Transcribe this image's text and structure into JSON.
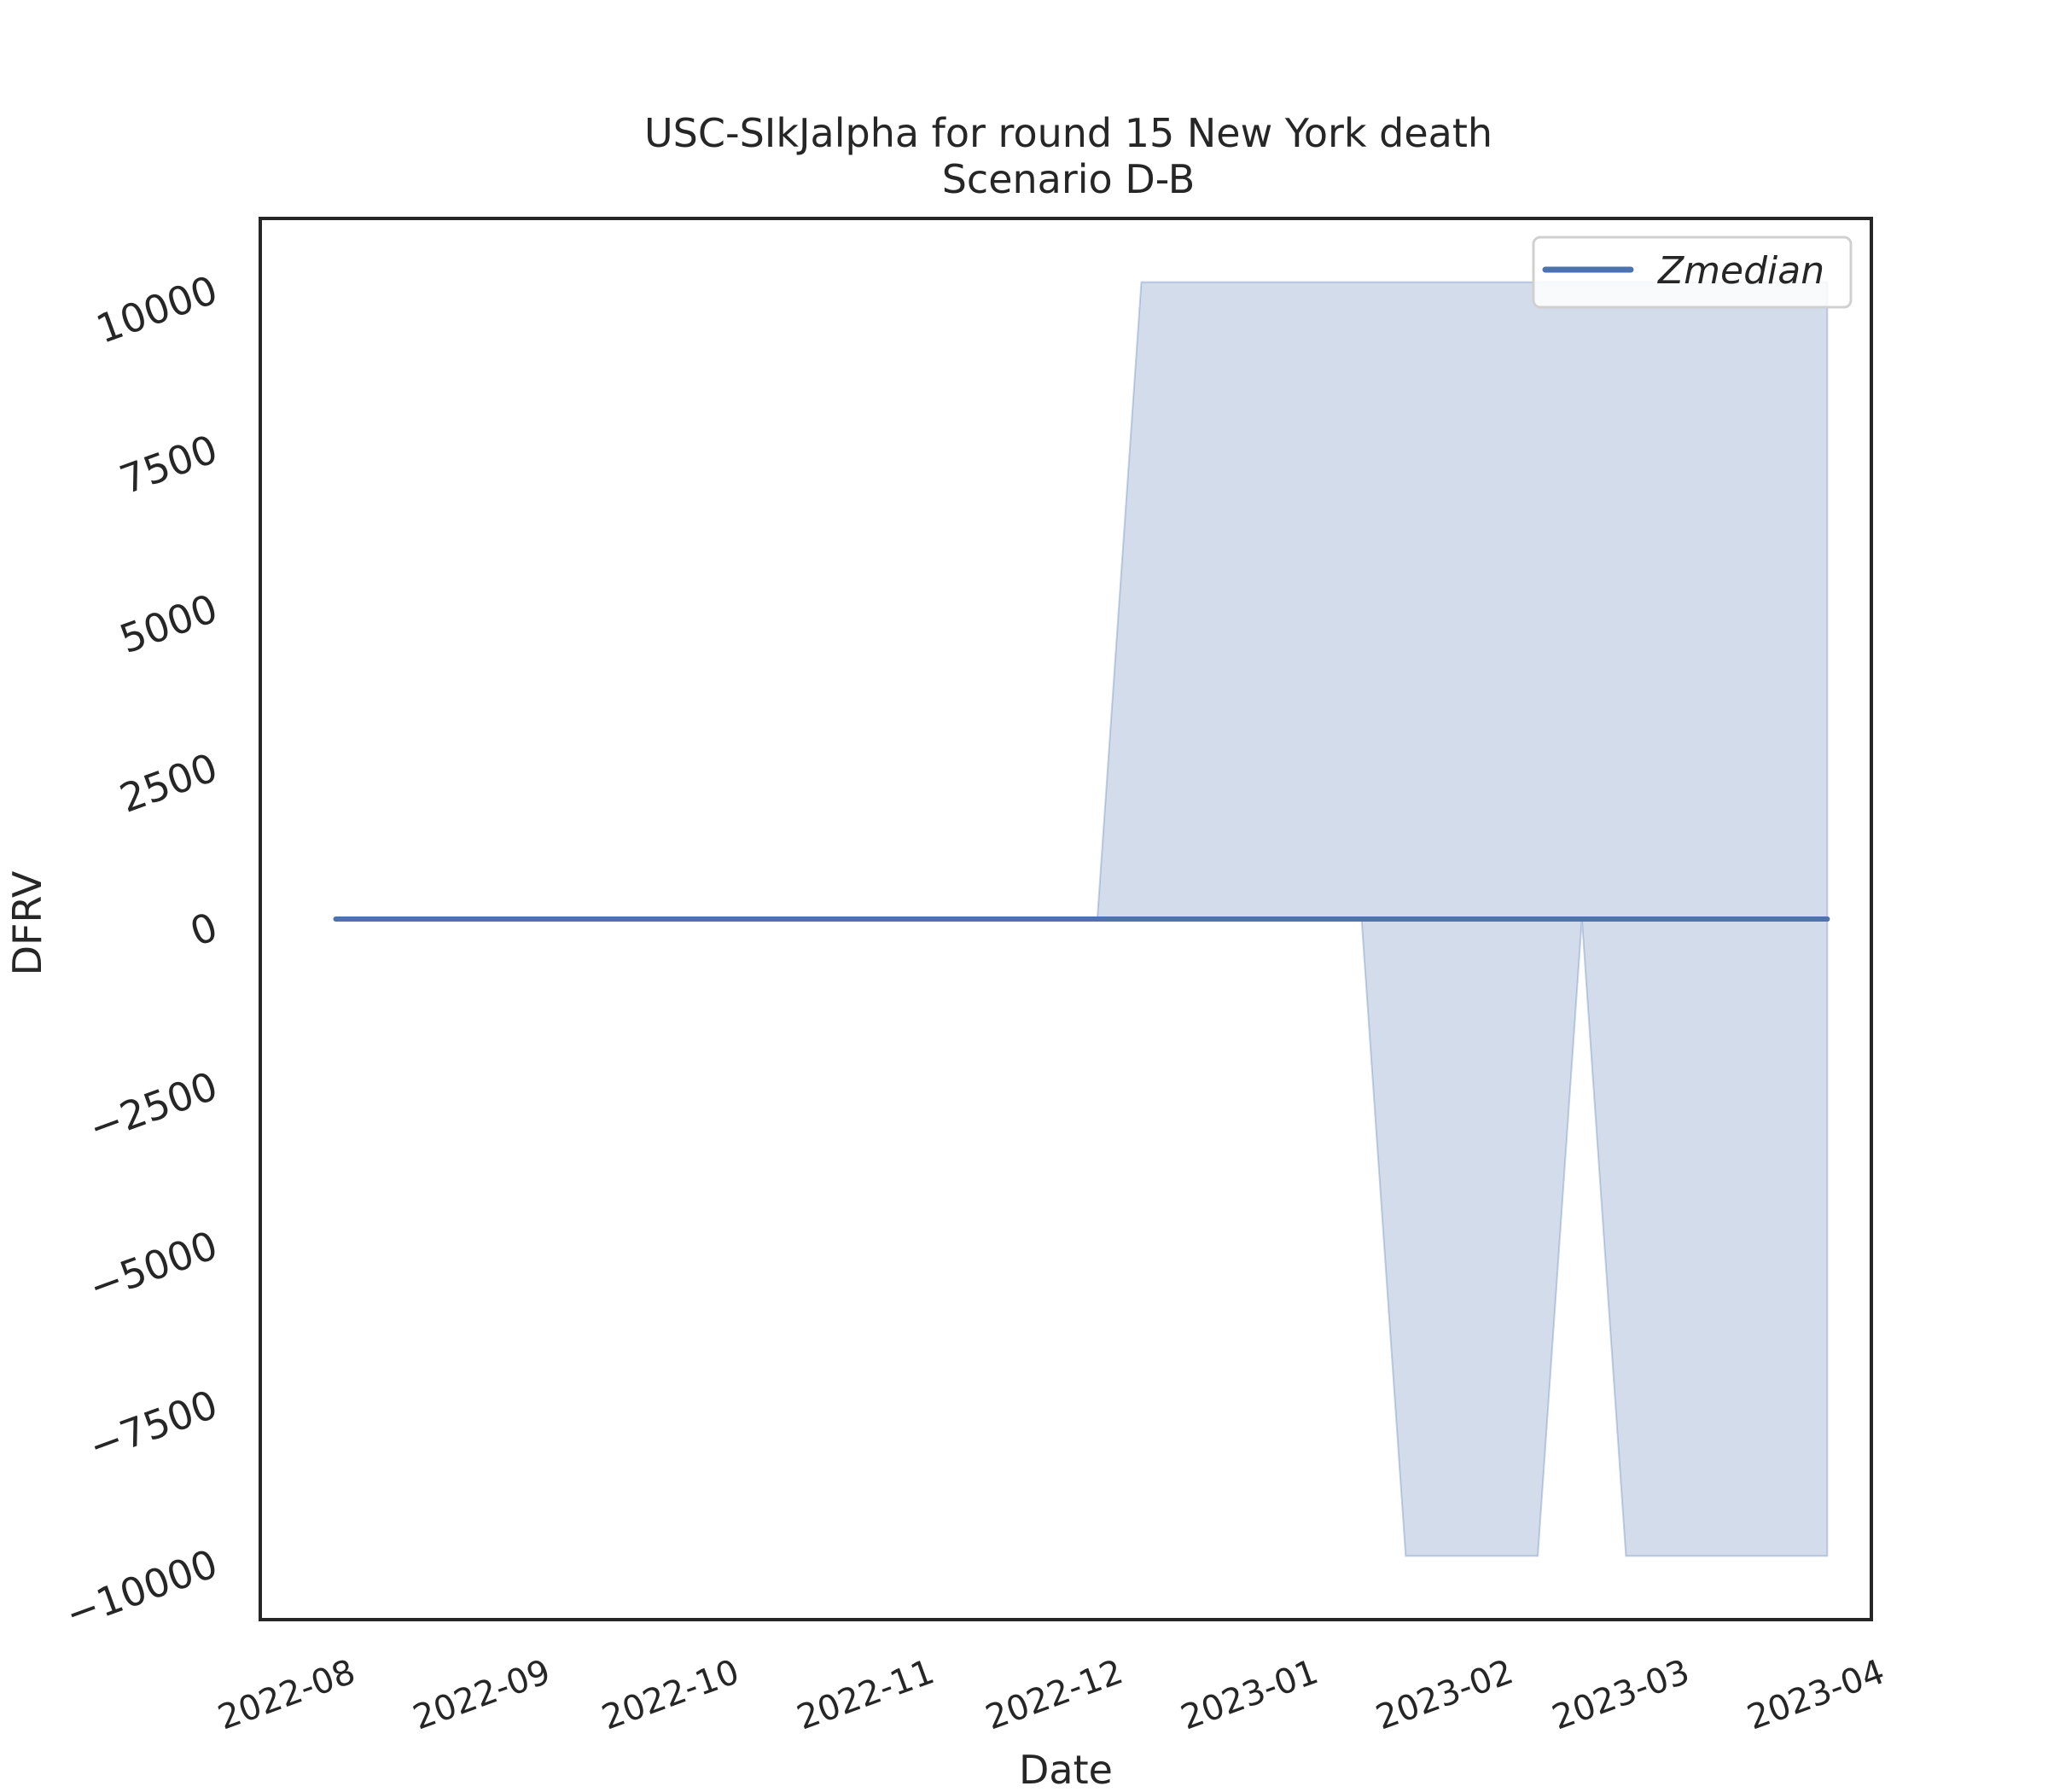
{
  "chart_data": {
    "type": "area",
    "title": "USC-SIkJalpha for round 15 New York death",
    "subtitle": "Scenario D-B",
    "xlabel": "Date",
    "ylabel": "DFRV",
    "xlim": [
      "2022-07-19",
      "2023-04-01"
    ],
    "ylim": [
      -11000,
      11000
    ],
    "yticks": [
      -10000,
      -7500,
      -5000,
      -2500,
      0,
      2500,
      5000,
      7500,
      10000
    ],
    "ytick_labels": [
      "−10000",
      "−7500",
      "−5000",
      "−2500",
      "0",
      "2500",
      "5000",
      "7500",
      "10000"
    ],
    "xticks": [
      "2022-08-01",
      "2022-09-01",
      "2022-10-01",
      "2022-11-01",
      "2022-12-01",
      "2023-01-01",
      "2023-02-01",
      "2023-03-01",
      "2023-04-01"
    ],
    "xtick_labels": [
      "2022-08",
      "2022-09",
      "2022-10",
      "2022-11",
      "2022-12",
      "2023-01",
      "2023-02",
      "2023-03",
      "2023-04"
    ],
    "grid": false,
    "legend_position": "top-right",
    "series": [
      {
        "name": "Zmedian",
        "color": "#4c72b0",
        "points": [
          {
            "x": "2022-07-31",
            "y": 0
          },
          {
            "x": "2023-03-25",
            "y": 0
          }
        ]
      }
    ],
    "band": {
      "color": "#4c72b0",
      "opacity": 0.25,
      "points": [
        {
          "x": "2022-07-31",
          "lower": 0,
          "upper": 0
        },
        {
          "x": "2022-11-29",
          "lower": 0,
          "upper": 0
        },
        {
          "x": "2022-12-06",
          "lower": 0,
          "upper": 10000
        },
        {
          "x": "2023-01-10",
          "lower": 0,
          "upper": 10000
        },
        {
          "x": "2023-01-17",
          "lower": -10000,
          "upper": 10000
        },
        {
          "x": "2023-02-07",
          "lower": -10000,
          "upper": 10000
        },
        {
          "x": "2023-02-14",
          "lower": 0,
          "upper": 10000
        },
        {
          "x": "2023-02-21",
          "lower": -10000,
          "upper": 10000
        },
        {
          "x": "2023-03-25",
          "lower": -10000,
          "upper": 10000
        }
      ]
    }
  }
}
